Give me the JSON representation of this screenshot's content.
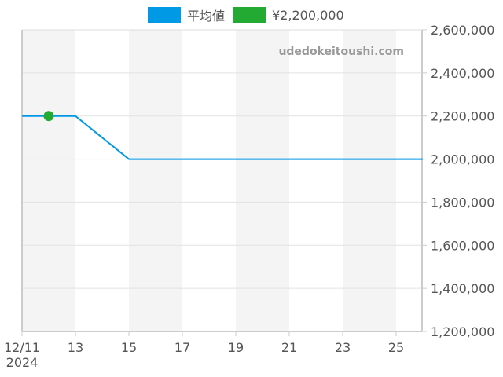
{
  "legend": [
    {
      "label": "平均値",
      "color": "#0099e6"
    },
    {
      "label": "¥2,200,000",
      "color": "#22aa33"
    }
  ],
  "watermark": "udedokeitoushi.com",
  "chart_data": {
    "type": "line",
    "title": "",
    "xlabel": "",
    "ylabel": "",
    "x_tick_labels": [
      "12/11\n2024",
      "13",
      "15",
      "17",
      "19",
      "21",
      "23",
      "25"
    ],
    "y_tick_labels": [
      "1,200,000",
      "1,400,000",
      "1,600,000",
      "1,800,000",
      "2,000,000",
      "2,200,000",
      "2,400,000",
      "2,600,000"
    ],
    "ylim": [
      1200000,
      2600000
    ],
    "xlim": [
      "2024-12-11",
      "2024-12-26"
    ],
    "grid": true,
    "legend_position": "top",
    "series": [
      {
        "name": "平均値",
        "color": "#0099e6",
        "type": "line",
        "x": [
          "2024-12-11",
          "2024-12-12",
          "2024-12-13",
          "2024-12-14",
          "2024-12-15",
          "2024-12-16",
          "2024-12-17",
          "2024-12-18",
          "2024-12-19",
          "2024-12-20",
          "2024-12-21",
          "2024-12-22",
          "2024-12-23",
          "2024-12-24",
          "2024-12-25",
          "2024-12-26"
        ],
        "values": [
          2200000,
          2200000,
          2200000,
          2100000,
          2000000,
          2000000,
          2000000,
          2000000,
          2000000,
          2000000,
          2000000,
          2000000,
          2000000,
          2000000,
          2000000,
          2000000
        ]
      },
      {
        "name": "¥2,200,000",
        "color": "#22aa33",
        "type": "scatter",
        "x": [
          "2024-12-12"
        ],
        "values": [
          2200000
        ]
      }
    ]
  }
}
